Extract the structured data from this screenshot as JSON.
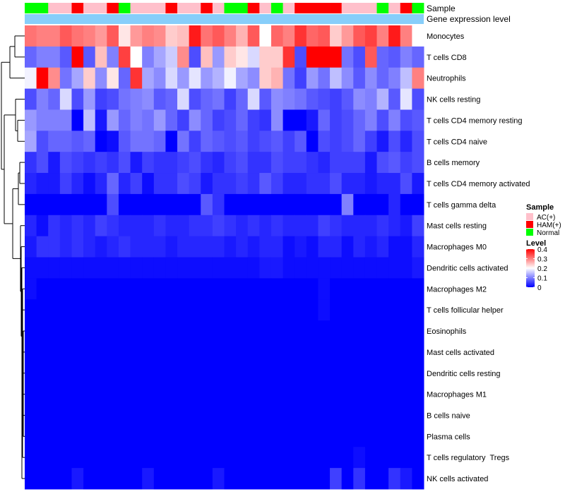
{
  "chart_data": {
    "type": "heatmap",
    "title": "",
    "annotation_labels": {
      "sample": "Sample",
      "expression": "Gene expression level"
    },
    "sample_groups": [
      "Normal",
      "Normal",
      "AC(+)",
      "AC(+)",
      "HAM(+)",
      "AC(+)",
      "AC(+)",
      "HAM(+)",
      "Normal",
      "AC(+)",
      "AC(+)",
      "AC(+)",
      "HAM(+)",
      "AC(+)",
      "AC(+)",
      "HAM(+)",
      "AC(+)",
      "Normal",
      "Normal",
      "HAM(+)",
      "AC(+)",
      "Normal",
      "AC(+)",
      "HAM(+)",
      "HAM(+)",
      "HAM(+)",
      "HAM(+)",
      "AC(+)",
      "AC(+)",
      "AC(+)",
      "Normal",
      "AC(+)",
      "HAM(+)",
      "Normal"
    ],
    "rows": [
      {
        "name": "Monocytes",
        "values": [
          0.31,
          0.3,
          0.3,
          0.33,
          0.31,
          0.3,
          0.28,
          0.33,
          0.22,
          0.28,
          0.3,
          0.29,
          0.24,
          0.25,
          0.38,
          0.31,
          0.33,
          0.3,
          0.26,
          0.33,
          0.2,
          0.32,
          0.3,
          0.36,
          0.32,
          0.33,
          0.24,
          0.28,
          0.33,
          0.35,
          0.3,
          0.38,
          0.3,
          0.2
        ]
      },
      {
        "name": "T cells CD8",
        "values": [
          0.08,
          0.1,
          0.1,
          0.07,
          0.4,
          0.07,
          0.25,
          0.1,
          0.35,
          0.2,
          0.1,
          0.13,
          0.16,
          0.29,
          0.06,
          0.25,
          0.12,
          0.24,
          0.22,
          0.17,
          0.24,
          0.24,
          0.36,
          0.06,
          0.4,
          0.4,
          0.4,
          0.09,
          0.06,
          0.33,
          0.08,
          0.07,
          0.1,
          0.08
        ]
      },
      {
        "name": "Neutrophils",
        "values": [
          0.19,
          0.4,
          0.29,
          0.09,
          0.13,
          0.24,
          0.11,
          0.22,
          0.08,
          0.36,
          0.13,
          0.11,
          0.17,
          0.12,
          0.18,
          0.12,
          0.14,
          0.19,
          0.13,
          0.11,
          0.24,
          0.26,
          0.09,
          0.05,
          0.12,
          0.09,
          0.15,
          0.11,
          0.07,
          0.11,
          0.08,
          0.1,
          0.15,
          0.3
        ]
      },
      {
        "name": "NK cells resting",
        "values": [
          0.06,
          0.1,
          0.08,
          0.17,
          0.06,
          0.12,
          0.05,
          0.06,
          0.09,
          0.1,
          0.11,
          0.07,
          0.08,
          0.17,
          0.06,
          0.08,
          0.09,
          0.05,
          0.08,
          0.17,
          0.07,
          0.11,
          0.1,
          0.09,
          0.07,
          0.06,
          0.05,
          0.07,
          0.11,
          0.1,
          0.14,
          0.07,
          0.18,
          0.06
        ]
      },
      {
        "name": "T cells CD4 memory resting",
        "values": [
          0.12,
          0.1,
          0.1,
          0.1,
          0.0,
          0.15,
          0.02,
          0.12,
          0.08,
          0.1,
          0.09,
          0.12,
          0.08,
          0.05,
          0.11,
          0.08,
          0.05,
          0.06,
          0.08,
          0.05,
          0.04,
          0.11,
          0.0,
          0.0,
          0.02,
          0.08,
          0.05,
          0.06,
          0.08,
          0.1,
          0.06,
          0.1,
          0.06,
          0.07
        ]
      },
      {
        "name": "T cells CD4 naive",
        "values": [
          0.13,
          0.06,
          0.08,
          0.08,
          0.07,
          0.08,
          0.0,
          0.01,
          0.07,
          0.09,
          0.09,
          0.08,
          0.0,
          0.09,
          0.05,
          0.08,
          0.07,
          0.06,
          0.07,
          0.05,
          0.06,
          0.07,
          0.05,
          0.07,
          0.0,
          0.06,
          0.05,
          0.06,
          0.08,
          0.05,
          0.02,
          0.06,
          0.03,
          0.06
        ]
      },
      {
        "name": "B cells memory",
        "values": [
          0.04,
          0.06,
          0.02,
          0.06,
          0.05,
          0.04,
          0.05,
          0.04,
          0.06,
          0.02,
          0.05,
          0.04,
          0.04,
          0.05,
          0.06,
          0.04,
          0.03,
          0.05,
          0.06,
          0.04,
          0.04,
          0.06,
          0.05,
          0.05,
          0.04,
          0.03,
          0.05,
          0.05,
          0.05,
          0.02,
          0.06,
          0.07,
          0.05,
          0.06
        ]
      },
      {
        "name": "T cells CD4 memory activated",
        "values": [
          0.03,
          0.02,
          0.02,
          0.05,
          0.03,
          0.01,
          0.03,
          0.08,
          0.03,
          0.05,
          0.01,
          0.04,
          0.04,
          0.06,
          0.05,
          0.02,
          0.04,
          0.04,
          0.05,
          0.04,
          0.07,
          0.05,
          0.03,
          0.03,
          0.04,
          0.04,
          0.06,
          0.03,
          0.03,
          0.02,
          0.03,
          0.03,
          0.06,
          0.02
        ]
      },
      {
        "name": "T cells gamma delta",
        "values": [
          0.0,
          0.0,
          0.0,
          0.0,
          0.0,
          0.0,
          0.0,
          0.06,
          0.0,
          0.0,
          0.0,
          0.0,
          0.0,
          0.0,
          0.0,
          0.07,
          0.04,
          0.0,
          0.0,
          0.0,
          0.0,
          0.0,
          0.0,
          0.0,
          0.0,
          0.0,
          0.0,
          0.1,
          0.0,
          0.0,
          0.0,
          0.03,
          0.0,
          0.0
        ]
      },
      {
        "name": "Mast cells resting",
        "values": [
          0.03,
          0.01,
          0.04,
          0.03,
          0.04,
          0.03,
          0.05,
          0.04,
          0.03,
          0.03,
          0.03,
          0.04,
          0.03,
          0.03,
          0.04,
          0.04,
          0.05,
          0.04,
          0.03,
          0.04,
          0.03,
          0.04,
          0.03,
          0.03,
          0.03,
          0.05,
          0.04,
          0.03,
          0.03,
          0.03,
          0.04,
          0.03,
          0.02,
          0.05
        ]
      },
      {
        "name": "Macrophages M0",
        "values": [
          0.02,
          0.04,
          0.04,
          0.03,
          0.04,
          0.03,
          0.02,
          0.03,
          0.04,
          0.03,
          0.03,
          0.03,
          0.02,
          0.03,
          0.03,
          0.03,
          0.03,
          0.02,
          0.03,
          0.02,
          0.03,
          0.03,
          0.01,
          0.02,
          0.01,
          0.03,
          0.03,
          0.01,
          0.03,
          0.02,
          0.03,
          0.01,
          0.01,
          0.03
        ]
      },
      {
        "name": "Dendritic cells activated",
        "values": [
          0.01,
          0.01,
          0.01,
          0.01,
          0.01,
          0.01,
          0.01,
          0.01,
          0.01,
          0.01,
          0.01,
          0.01,
          0.01,
          0.01,
          0.01,
          0.01,
          0.01,
          0.01,
          0.01,
          0.01,
          0.02,
          0.02,
          0.01,
          0.01,
          0.01,
          0.01,
          0.01,
          0.01,
          0.01,
          0.01,
          0.01,
          0.01,
          0.01,
          0.02
        ]
      },
      {
        "name": "Macrophages M2",
        "values": [
          0.01,
          0.0,
          0.0,
          0.0,
          0.0,
          0.0,
          0.0,
          0.0,
          0.0,
          0.0,
          0.0,
          0.0,
          0.0,
          0.0,
          0.0,
          0.0,
          0.0,
          0.0,
          0.0,
          0.0,
          0.0,
          0.0,
          0.0,
          0.0,
          0.0,
          0.01,
          0.0,
          0.0,
          0.0,
          0.0,
          0.0,
          0.0,
          0.0,
          0.0
        ]
      },
      {
        "name": "T cells follicular helper",
        "values": [
          0.0,
          0.0,
          0.0,
          0.0,
          0.0,
          0.0,
          0.0,
          0.0,
          0.0,
          0.0,
          0.0,
          0.0,
          0.0,
          0.0,
          0.0,
          0.0,
          0.0,
          0.0,
          0.0,
          0.0,
          0.0,
          0.0,
          0.0,
          0.0,
          0.0,
          0.01,
          0.0,
          0.0,
          0.0,
          0.0,
          0.0,
          0.0,
          0.0,
          0.0
        ]
      },
      {
        "name": "Eosinophils",
        "values": [
          0,
          0,
          0,
          0,
          0,
          0,
          0,
          0,
          0,
          0,
          0,
          0,
          0,
          0,
          0,
          0,
          0,
          0,
          0,
          0,
          0,
          0,
          0,
          0,
          0,
          0,
          0,
          0,
          0,
          0,
          0,
          0,
          0,
          0
        ]
      },
      {
        "name": "Mast cells activated",
        "values": [
          0,
          0,
          0,
          0,
          0,
          0,
          0,
          0,
          0,
          0,
          0,
          0,
          0,
          0,
          0,
          0,
          0,
          0,
          0,
          0,
          0,
          0,
          0,
          0,
          0,
          0,
          0,
          0,
          0,
          0,
          0,
          0,
          0,
          0
        ]
      },
      {
        "name": "Dendritic cells resting",
        "values": [
          0,
          0,
          0,
          0,
          0,
          0,
          0,
          0,
          0,
          0,
          0,
          0,
          0,
          0,
          0,
          0,
          0,
          0,
          0,
          0,
          0,
          0,
          0,
          0,
          0,
          0,
          0,
          0,
          0,
          0,
          0,
          0,
          0,
          0
        ]
      },
      {
        "name": "Macrophages M1",
        "values": [
          0,
          0,
          0,
          0,
          0,
          0,
          0,
          0,
          0,
          0,
          0,
          0,
          0,
          0,
          0,
          0,
          0,
          0,
          0,
          0,
          0,
          0,
          0,
          0,
          0,
          0,
          0,
          0,
          0,
          0,
          0,
          0,
          0,
          0
        ]
      },
      {
        "name": "B cells naive",
        "values": [
          0,
          0,
          0,
          0,
          0,
          0,
          0,
          0,
          0,
          0,
          0,
          0,
          0,
          0,
          0,
          0,
          0,
          0,
          0,
          0,
          0,
          0,
          0,
          0,
          0,
          0,
          0,
          0,
          0,
          0,
          0,
          0,
          0,
          0
        ]
      },
      {
        "name": "Plasma cells",
        "values": [
          0,
          0,
          0,
          0,
          0,
          0,
          0,
          0,
          0,
          0,
          0,
          0,
          0,
          0,
          0,
          0,
          0,
          0,
          0,
          0,
          0,
          0,
          0,
          0,
          0,
          0,
          0,
          0,
          0,
          0,
          0,
          0,
          0,
          0
        ]
      },
      {
        "name": "T cells regulatory  Tregs",
        "values": [
          0.0,
          0.0,
          0.0,
          0.0,
          0.0,
          0.0,
          0.0,
          0.0,
          0.0,
          0.0,
          0.0,
          0.0,
          0.0,
          0.0,
          0.0,
          0.0,
          0.0,
          0.0,
          0.0,
          0.0,
          0.0,
          0.0,
          0.0,
          0.0,
          0.0,
          0.0,
          0.0,
          0.0,
          0.01,
          0.0,
          0.0,
          0.0,
          0.0,
          0.0
        ]
      },
      {
        "name": "NK cells activated",
        "values": [
          0.0,
          0.0,
          0.0,
          0.0,
          0.02,
          0.0,
          0.0,
          0.0,
          0.0,
          0.0,
          0.02,
          0.0,
          0.0,
          0.0,
          0.0,
          0.0,
          0.02,
          0.0,
          0.0,
          0.0,
          0.0,
          0.0,
          0.0,
          0.0,
          0.0,
          0.0,
          0.05,
          0.0,
          0.04,
          0.0,
          0.0,
          0.04,
          0.02,
          0.0
        ]
      }
    ],
    "legend": {
      "sample": {
        "title": "Sample",
        "entries": [
          {
            "label": "AC(+)",
            "color": "#ffc0cb"
          },
          {
            "label": "HAM(+)",
            "color": "#ff0000"
          },
          {
            "label": "Normal",
            "color": "#00ff00"
          }
        ]
      },
      "level": {
        "title": "Level",
        "range": [
          0,
          0.4
        ],
        "ticks": [
          "0.4",
          "0.3",
          "0.2",
          "0.1",
          "0"
        ],
        "colors": {
          "low": "#0000ff",
          "mid": "#ffffff",
          "high": "#ff0000"
        }
      }
    },
    "expression_color": "#87cefa"
  }
}
